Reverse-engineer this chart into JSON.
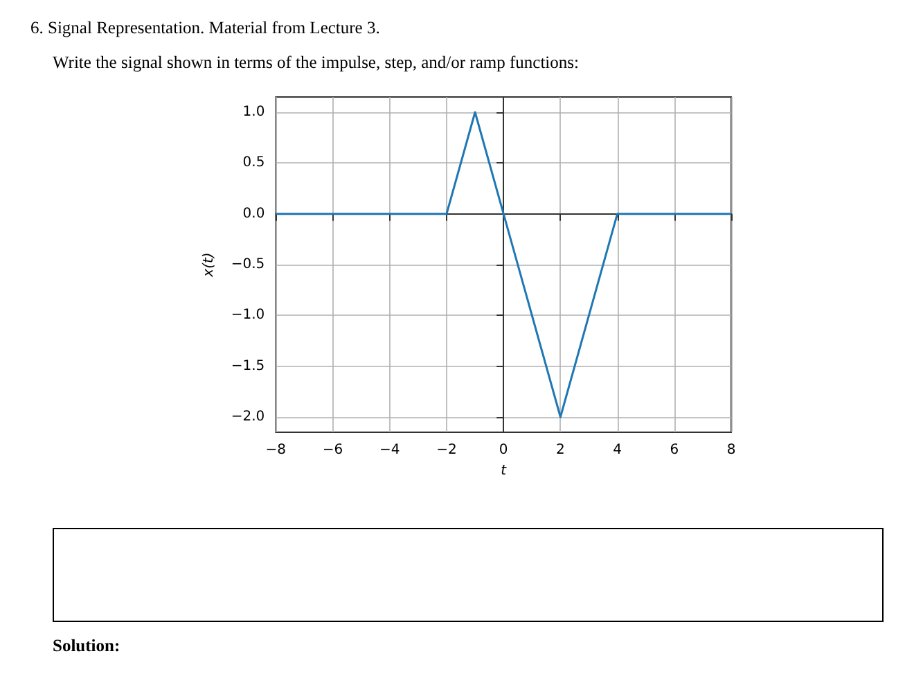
{
  "chart_data": {
    "type": "line",
    "title": "6. Signal Representation. Material from Lecture 3.",
    "subtitle": "Write the signal shown in terms of the impulse, step, and/or ramp functions:",
    "annotations": [
      "Solution:"
    ],
    "xlabel": "t",
    "ylabel": "x(t)",
    "x": [
      -8,
      -2,
      -1,
      0,
      2,
      4,
      8
    ],
    "series": [
      {
        "color": "#1f77b4",
        "values": [
          0,
          0,
          1,
          0,
          -2,
          0,
          0
        ]
      }
    ],
    "xlim": [
      -8,
      8
    ],
    "xticks": [
      {
        "value": -8,
        "label": "−8"
      },
      {
        "value": -6,
        "label": "−6"
      },
      {
        "value": -4,
        "label": "−4"
      },
      {
        "value": -2,
        "label": "−2"
      },
      0,
      2,
      4,
      6,
      8
    ],
    "ylim": [
      -2.15,
      1.15
    ],
    "yticks": [
      {
        "value": -2,
        "label": "−2.0"
      },
      {
        "value": -1.5,
        "label": "−1.5"
      },
      {
        "value": -1,
        "label": "−1.0"
      },
      {
        "value": -0.5,
        "label": "−0.5"
      },
      {
        "value": 0,
        "label": "0.0"
      },
      {
        "value": 0.5,
        "label": "0.5"
      },
      {
        "value": 1,
        "label": "1.0"
      }
    ],
    "grid": true,
    "marker": "none",
    "line_style": "solid"
  }
}
